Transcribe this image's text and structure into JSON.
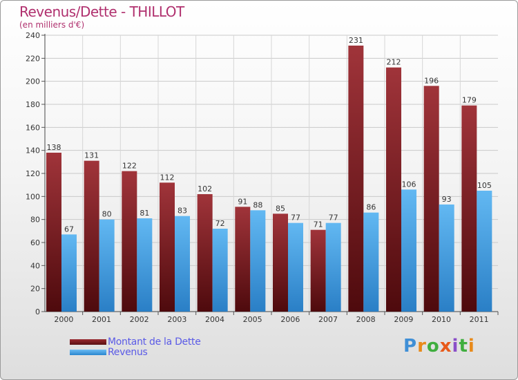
{
  "header": {
    "title": "Revenus/Dette - THILLOT",
    "subtitle": "(en milliers d'€)"
  },
  "chart_data": {
    "type": "bar",
    "title": "Revenus/Dette - THILLOT",
    "ylabel": "(en milliers d'€)",
    "xlabel": "",
    "categories": [
      "2000",
      "2001",
      "2002",
      "2003",
      "2004",
      "2005",
      "2006",
      "2007",
      "2008",
      "2009",
      "2010",
      "2011"
    ],
    "series": [
      {
        "name": "Montant de la Dette",
        "color": "#7a1f24",
        "values": [
          138,
          131,
          122,
          112,
          102,
          91,
          85,
          71,
          231,
          212,
          196,
          179
        ]
      },
      {
        "name": "Revenus",
        "color": "#4aa3e8",
        "values": [
          67,
          80,
          81,
          83,
          72,
          88,
          77,
          77,
          86,
          106,
          93,
          105
        ]
      }
    ],
    "ylim": [
      0,
      240
    ],
    "yticks": [
      0,
      20,
      40,
      60,
      80,
      100,
      120,
      140,
      160,
      180,
      200,
      220,
      240
    ],
    "grid": true,
    "legend": "bottom-left"
  },
  "legend": {
    "items": [
      {
        "label": "Montant de la Dette"
      },
      {
        "label": "Revenus"
      }
    ]
  },
  "logo": {
    "letters": [
      "P",
      "r",
      "o",
      "x",
      "i",
      "t",
      "i"
    ],
    "colors": [
      "#3f8fd6",
      "#e88a1a",
      "#3fae3f",
      "#e85a1a",
      "#8a4fc8",
      "#3fae3f",
      "#e88a1a"
    ]
  }
}
